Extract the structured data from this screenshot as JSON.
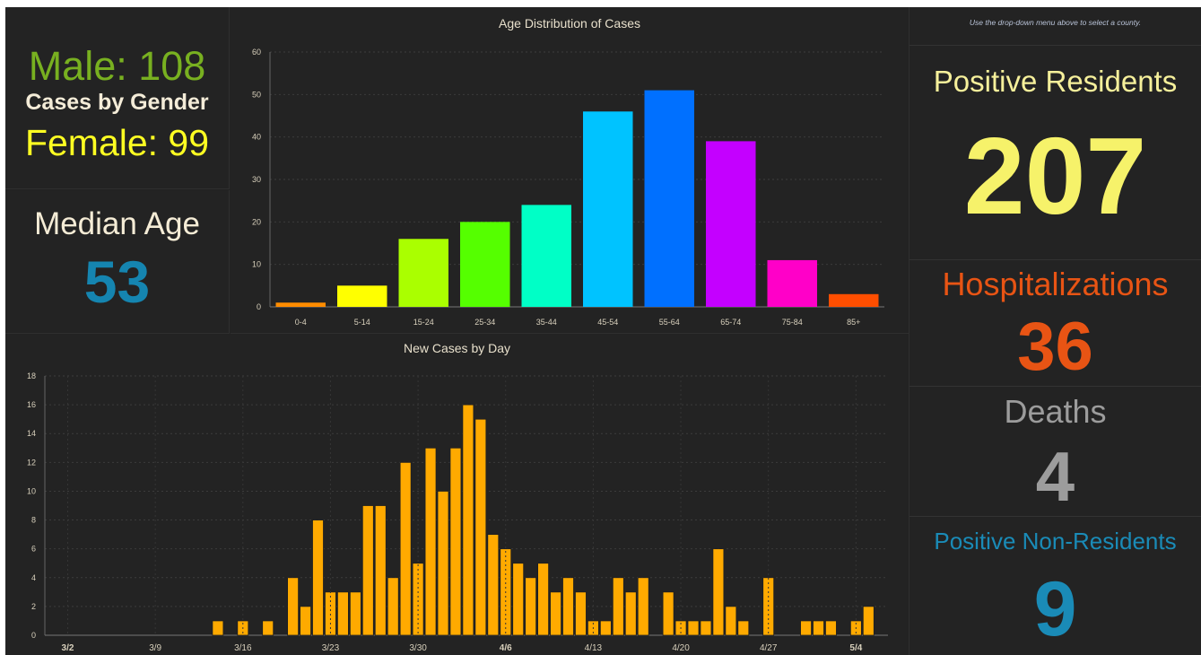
{
  "gender": {
    "male_text": "Male: 108",
    "title": "Cases by Gender",
    "female_text": "Female: 99"
  },
  "median": {
    "label": "Median Age",
    "value": "53"
  },
  "right": {
    "hint": "Use the drop-down menu above to select a county.",
    "positive_label": "Positive Residents",
    "positive_value": "207",
    "hosp_label": "Hospitalizations",
    "hosp_value": "36",
    "deaths_label": "Deaths",
    "deaths_value": "4",
    "nonres_label": "Positive Non-Residents",
    "nonres_value": "9"
  },
  "chart_data": [
    {
      "type": "bar",
      "title": "Age Distribution of Cases",
      "categories": [
        "0-4",
        "5-14",
        "15-24",
        "25-34",
        "35-44",
        "45-54",
        "55-64",
        "65-74",
        "75-84",
        "85+"
      ],
      "values": [
        1,
        5,
        16,
        20,
        24,
        46,
        51,
        39,
        11,
        3
      ],
      "colors": [
        "#ff8c00",
        "#ffff00",
        "#aaff00",
        "#55ff00",
        "#00ffc6",
        "#00c3ff",
        "#0070ff",
        "#c400ff",
        "#ff00c8",
        "#ff4e00"
      ],
      "ylim": [
        0,
        60
      ],
      "yticks": [
        0,
        10,
        20,
        30,
        40,
        50,
        60
      ],
      "grid": true
    },
    {
      "type": "bar",
      "title": "New Cases by Day",
      "x_labels": [
        "3/2",
        "3/9",
        "3/16",
        "3/23",
        "3/30",
        "4/6",
        "4/13",
        "4/20",
        "4/27",
        "5/4"
      ],
      "bold_labels": [
        "3/2",
        "4/6",
        "5/4"
      ],
      "start_label": "3/2",
      "values": [
        0,
        0,
        0,
        0,
        0,
        0,
        0,
        0,
        0,
        0,
        0,
        0,
        1,
        0,
        1,
        0,
        1,
        0,
        4,
        2,
        8,
        3,
        3,
        3,
        9,
        9,
        4,
        12,
        5,
        13,
        10,
        13,
        16,
        15,
        7,
        6,
        5,
        4,
        5,
        3,
        4,
        3,
        1,
        1,
        4,
        3,
        4,
        0,
        3,
        1,
        1,
        1,
        6,
        2,
        1,
        0,
        4,
        0,
        0,
        1,
        1,
        1,
        0,
        1,
        2
      ],
      "color": "#ffaa00",
      "ylim": [
        0,
        18
      ],
      "yticks": [
        0,
        2,
        4,
        6,
        8,
        10,
        12,
        14,
        16,
        18
      ],
      "grid": true
    }
  ]
}
